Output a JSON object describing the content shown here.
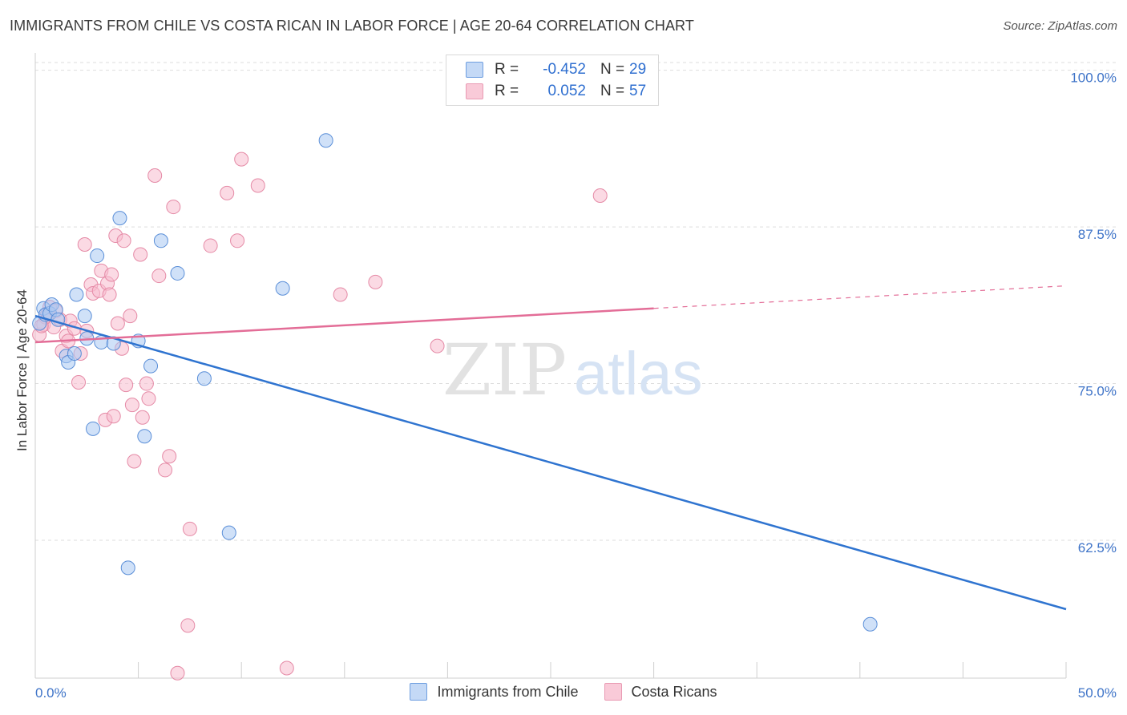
{
  "title": "IMMIGRANTS FROM CHILE VS COSTA RICAN IN LABOR FORCE | AGE 20-64 CORRELATION CHART",
  "source": "Source: ZipAtlas.com",
  "watermark": {
    "zip": "ZIP",
    "atlas": "atlas"
  },
  "legend": {
    "rows": [
      {
        "r_label": "R =",
        "r_value": "-0.452",
        "n_label": "N =",
        "n_value": "29"
      },
      {
        "r_label": "R =",
        "r_value": "0.052",
        "n_label": "N =",
        "n_value": "57"
      }
    ]
  },
  "colors": {
    "blue_fill": "#a9c8f2",
    "blue_stroke": "#5b8fd8",
    "blue_line": "#2f74d0",
    "pink_fill": "#f7bccd",
    "pink_stroke": "#e58aa6",
    "pink_line": "#e36d97",
    "tick_text": "#3f74c8",
    "grid": "#dddddd"
  },
  "chart_data": {
    "type": "scatter",
    "title": "IMMIGRANTS FROM CHILE VS COSTA RICAN IN LABOR FORCE | AGE 20-64 CORRELATION CHART",
    "xlabel": "",
    "ylabel": "In Labor Force | Age 20-64",
    "xlim": [
      0,
      50
    ],
    "ylim": [
      51.5,
      101
    ],
    "x_tick_labels": [
      {
        "value": 0,
        "label": "0.0%"
      },
      {
        "value": 50,
        "label": "50.0%"
      }
    ],
    "y_tick_labels": [
      {
        "value": 100,
        "label": "100.0%"
      },
      {
        "value": 87.5,
        "label": "87.5%"
      },
      {
        "value": 75,
        "label": "75.0%"
      },
      {
        "value": 62.5,
        "label": "62.5%"
      }
    ],
    "grid": true,
    "legend_position": "top-center",
    "series": [
      {
        "name": "Immigrants from Chile",
        "points": [
          [
            0.2,
            79.8
          ],
          [
            0.4,
            81.0
          ],
          [
            0.5,
            80.5
          ],
          [
            0.7,
            80.6
          ],
          [
            0.8,
            81.3
          ],
          [
            1.0,
            80.9
          ],
          [
            1.1,
            80.1
          ],
          [
            1.5,
            77.2
          ],
          [
            1.6,
            76.7
          ],
          [
            1.9,
            77.4
          ],
          [
            2.0,
            82.1
          ],
          [
            2.4,
            80.4
          ],
          [
            2.5,
            78.6
          ],
          [
            2.8,
            71.4
          ],
          [
            3.0,
            85.2
          ],
          [
            3.2,
            78.3
          ],
          [
            3.8,
            78.2
          ],
          [
            4.1,
            88.2
          ],
          [
            4.5,
            60.3
          ],
          [
            5.0,
            78.4
          ],
          [
            5.3,
            70.8
          ],
          [
            5.6,
            76.4
          ],
          [
            6.1,
            86.4
          ],
          [
            6.9,
            83.8
          ],
          [
            8.2,
            75.4
          ],
          [
            9.4,
            63.1
          ],
          [
            12.0,
            82.6
          ],
          [
            14.1,
            94.4
          ],
          [
            40.5,
            55.8
          ]
        ]
      },
      {
        "name": "Costa Ricans",
        "points": [
          [
            0.2,
            78.9
          ],
          [
            0.4,
            79.7
          ],
          [
            0.5,
            80.3
          ],
          [
            0.6,
            80.6
          ],
          [
            0.7,
            81.1
          ],
          [
            0.9,
            79.5
          ],
          [
            1.0,
            80.8
          ],
          [
            1.2,
            80.1
          ],
          [
            1.3,
            77.6
          ],
          [
            1.5,
            78.8
          ],
          [
            1.6,
            78.4
          ],
          [
            1.7,
            80.0
          ],
          [
            1.9,
            79.4
          ],
          [
            2.1,
            75.1
          ],
          [
            2.2,
            77.4
          ],
          [
            2.4,
            86.1
          ],
          [
            2.5,
            79.2
          ],
          [
            2.7,
            82.9
          ],
          [
            2.8,
            82.2
          ],
          [
            3.1,
            82.4
          ],
          [
            3.2,
            84.0
          ],
          [
            3.4,
            72.1
          ],
          [
            3.5,
            83.0
          ],
          [
            3.6,
            82.1
          ],
          [
            3.7,
            83.7
          ],
          [
            3.8,
            72.4
          ],
          [
            3.9,
            86.8
          ],
          [
            4.0,
            79.8
          ],
          [
            4.2,
            77.8
          ],
          [
            4.3,
            86.4
          ],
          [
            4.4,
            74.9
          ],
          [
            4.6,
            80.4
          ],
          [
            4.7,
            73.3
          ],
          [
            4.8,
            68.8
          ],
          [
            5.1,
            85.3
          ],
          [
            5.2,
            72.3
          ],
          [
            5.4,
            75.0
          ],
          [
            5.5,
            73.8
          ],
          [
            5.8,
            91.6
          ],
          [
            6.0,
            83.6
          ],
          [
            6.3,
            68.1
          ],
          [
            6.5,
            69.2
          ],
          [
            6.7,
            89.1
          ],
          [
            6.9,
            51.9
          ],
          [
            7.4,
            55.7
          ],
          [
            7.5,
            63.4
          ],
          [
            8.5,
            86.0
          ],
          [
            9.3,
            90.2
          ],
          [
            9.8,
            86.4
          ],
          [
            10.0,
            92.9
          ],
          [
            10.8,
            90.8
          ],
          [
            12.2,
            52.3
          ],
          [
            14.8,
            82.1
          ],
          [
            16.5,
            83.1
          ],
          [
            19.5,
            78.0
          ],
          [
            27.4,
            90.0
          ],
          [
            0.3,
            79.6
          ]
        ]
      }
    ],
    "trend_lines": [
      {
        "series": "Immigrants from Chile",
        "x": [
          0,
          50
        ],
        "y": [
          80.4,
          57.0
        ],
        "dashed_from_x": null
      },
      {
        "series": "Costa Ricans",
        "x": [
          0,
          50
        ],
        "y": [
          78.3,
          82.8
        ],
        "dashed_from_x": 30
      }
    ]
  },
  "bottom_legend": [
    {
      "label": "Immigrants from Chile"
    },
    {
      "label": "Costa Ricans"
    }
  ]
}
